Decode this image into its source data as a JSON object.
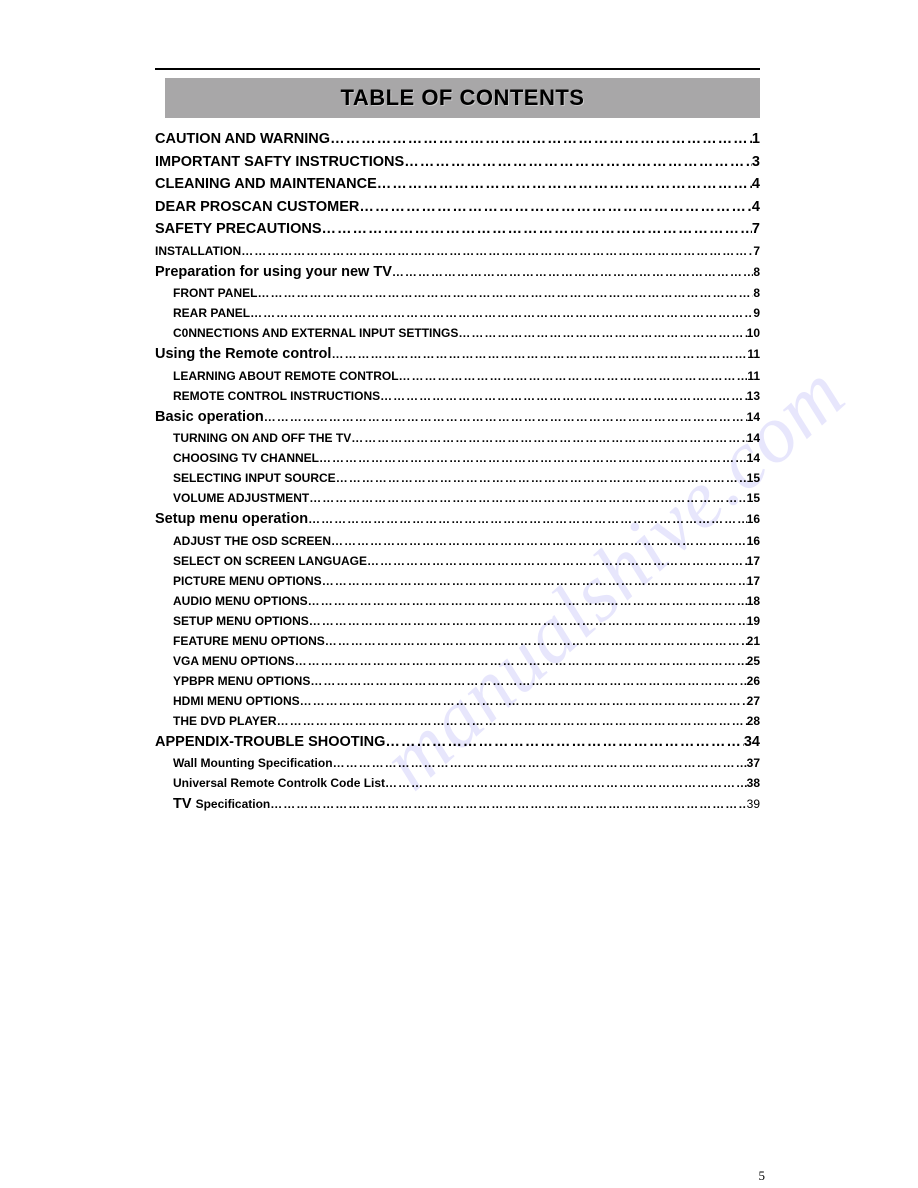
{
  "title": "TABLE OF CONTENTS",
  "page_number": "5",
  "watermark": "manualshive.com",
  "toc": [
    {
      "label": "CAUTION AND WARNING",
      "page": "1",
      "cls": "lvl0"
    },
    {
      "label": "IMPORTANT SAFTY INSTRUCTIONS",
      "page": "3",
      "cls": "lvl0"
    },
    {
      "label": "CLEANING AND MAINTENANCE",
      "page": "4",
      "cls": "lvl0"
    },
    {
      "label": "DEAR PROSCAN CUSTOMER",
      "page": "4",
      "cls": "lvl0"
    },
    {
      "label": "SAFETY PRECAUTIONS",
      "page": "7",
      "cls": "lvl0"
    },
    {
      "label": "INSTALLATION",
      "page": "7",
      "cls": "lvl0-small"
    },
    {
      "label": "Preparation for using your new TV ",
      "page": "8",
      "cls": "lvl1"
    },
    {
      "label": "FRONT PANEL",
      "page": "8",
      "cls": "lvl2"
    },
    {
      "label": "REAR PANEL",
      "page": "9",
      "cls": "lvl2"
    },
    {
      "label": "C0NNECTIONS AND EXTERNAL INPUT SETTINGS",
      "page": "10",
      "cls": "lvl2"
    },
    {
      "label": "Using the Remote control",
      "page": "11",
      "cls": "lvl1"
    },
    {
      "label": "LEARNING ABOUT REMOTE CONTROL",
      "page": "11",
      "cls": "lvl2"
    },
    {
      "label": "REMOTE CONTROL INSTRUCTIONS",
      "page": "13",
      "cls": "lvl2"
    },
    {
      "label": "Basic operation",
      "page": "14",
      "cls": "lvl1"
    },
    {
      "label": "TURNING ON AND OFF THE TV",
      "page": "14",
      "cls": "lvl2"
    },
    {
      "label": "CHOOSING TV CHANNEL",
      "page": "14",
      "cls": "lvl2"
    },
    {
      "label": "SELECTING INPUT SOURCE",
      "page": "15",
      "cls": "lvl2"
    },
    {
      "label": "VOLUME ADJUSTMENT",
      "page": "15",
      "cls": "lvl2"
    },
    {
      "label": "Setup menu operation",
      "page": "16",
      "cls": "lvl1"
    },
    {
      "label": "ADJUST THE OSD SCREEN",
      "page": "16",
      "cls": "lvl2"
    },
    {
      "label": "SELECT ON SCREEN LANGUAGE",
      "page": "17",
      "cls": "lvl2"
    },
    {
      "label": "PICTURE MENU OPTIONS ",
      "page": "17",
      "cls": "lvl2"
    },
    {
      "label": "AUDIO MENU OPTIONS",
      "page": "18",
      "cls": "lvl2"
    },
    {
      "label": "SETUP MENU OPTIONS",
      "page": "19",
      "cls": "lvl2"
    },
    {
      "label": "FEATURE MENU OPTIONS",
      "page": "21",
      "cls": "lvl2"
    },
    {
      "label": "VGA MENU OPTIONS",
      "page": "25",
      "cls": "lvl2"
    },
    {
      "label": "YPBPR MENU OPTIONS",
      "page": "26",
      "cls": "lvl2"
    },
    {
      "label": "HDMI MENU OPTIONS",
      "page": "27",
      "cls": "lvl2"
    },
    {
      "label": "THE DVD PLAYER",
      "page": "28",
      "cls": "lvl2"
    },
    {
      "label": "APPENDIX-TROUBLE SHOOTING",
      "page": "34",
      "cls": "lvl0"
    },
    {
      "label": "Wall Mounting Specification",
      "page": "37",
      "cls": "lvl2"
    },
    {
      "label": "Universal Remote Controlk Code List",
      "page": "38",
      "cls": "lvl2"
    },
    {
      "label_html": "<span class='big'>TV </span><span class='small'>Specification</span>",
      "page": "39",
      "cls": "lvl2 lvl2-mixed",
      "pg_plain": true
    }
  ]
}
